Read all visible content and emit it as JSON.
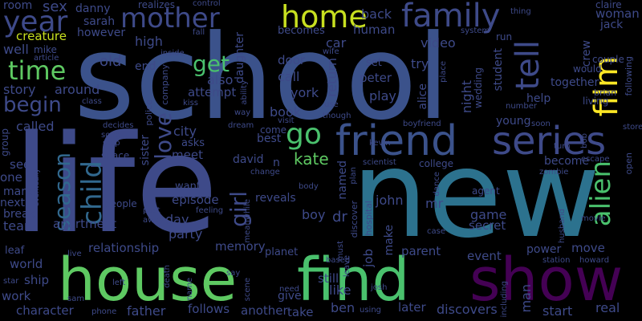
{
  "words": [
    {
      "text": "school",
      "color": "#3b528b",
      "vertical": false
    },
    {
      "text": "life",
      "color": "#3e4a89",
      "vertical": false
    },
    {
      "text": "new",
      "color": "#2c728e",
      "vertical": false
    },
    {
      "text": "house",
      "color": "#5ec962",
      "vertical": false
    },
    {
      "text": "find",
      "color": "#4ac16d",
      "vertical": false
    },
    {
      "text": "show",
      "color": "#440154",
      "vertical": false
    },
    {
      "text": "friend",
      "color": "#3b528b",
      "vertical": false
    },
    {
      "text": "series",
      "color": "#3e4a89",
      "vertical": false
    },
    {
      "text": "family",
      "color": "#3e4a89",
      "vertical": false
    },
    {
      "text": "mother",
      "color": "#3e4a89",
      "vertical": false
    },
    {
      "text": "home",
      "color": "#c8e020",
      "vertical": false
    },
    {
      "text": "year",
      "color": "#3e4a89",
      "vertical": false
    },
    {
      "text": "time",
      "color": "#5ec962",
      "vertical": false
    },
    {
      "text": "film",
      "color": "#fde725",
      "vertical": true
    },
    {
      "text": "alien",
      "color": "#4ac16d",
      "vertical": true
    },
    {
      "text": "tell",
      "color": "#3e4a89",
      "vertical": true
    },
    {
      "text": "child",
      "color": "#31688e",
      "vertical": true
    },
    {
      "text": "season",
      "color": "#31688e",
      "vertical": true
    },
    {
      "text": "love",
      "color": "#3e4a89",
      "vertical": true
    },
    {
      "text": "girl",
      "color": "#3e4a89",
      "vertical": true
    },
    {
      "text": "go",
      "color": "#4ac16d",
      "vertical": false
    },
    {
      "text": "get",
      "color": "#4ac16d",
      "vertical": false
    },
    {
      "text": "begin",
      "color": "#3e4a89",
      "vertical": false
    },
    {
      "text": "kate",
      "color": "#5ec962",
      "vertical": false
    },
    {
      "text": "sex",
      "color": "#3e4a89",
      "vertical": false
    },
    {
      "text": "room",
      "color": "#3e4a89",
      "vertical": false
    },
    {
      "text": "danny",
      "color": "#3e4a89",
      "vertical": false
    },
    {
      "text": "realizes",
      "color": "#3e4a89",
      "vertical": false
    },
    {
      "text": "control",
      "color": "#3e4a89",
      "vertical": false
    },
    {
      "text": "claire",
      "color": "#3e4a89",
      "vertical": false
    },
    {
      "text": "woman",
      "color": "#3e4a89",
      "vertical": false
    },
    {
      "text": "jack",
      "color": "#3e4a89",
      "vertical": false
    },
    {
      "text": "back",
      "color": "#3e4a89",
      "vertical": false
    },
    {
      "text": "video",
      "color": "#3e4a89",
      "vertical": false
    },
    {
      "text": "system",
      "color": "#3e4a89",
      "vertical": false
    },
    {
      "text": "crew",
      "color": "#3e4a89",
      "vertical": true
    },
    {
      "text": "thing",
      "color": "#3e4a89",
      "vertical": false
    },
    {
      "text": "run",
      "color": "#3e4a89",
      "vertical": false
    },
    {
      "text": "couple",
      "color": "#3e4a89",
      "vertical": false
    },
    {
      "text": "would",
      "color": "#3e4a89",
      "vertical": false
    },
    {
      "text": "brian",
      "color": "#3e4a89",
      "vertical": false
    },
    {
      "text": "living",
      "color": "#3e4a89",
      "vertical": false
    },
    {
      "text": "following",
      "color": "#3e4a89",
      "vertical": true
    },
    {
      "text": "sarah",
      "color": "#3e4a89",
      "vertical": false
    },
    {
      "text": "however",
      "color": "#3e4a89",
      "vertical": false
    },
    {
      "text": "creature",
      "color": "#c8e020",
      "vertical": false
    },
    {
      "text": "well",
      "color": "#3e4a89",
      "vertical": false
    },
    {
      "text": "mike",
      "color": "#3e4a89",
      "vertical": false
    },
    {
      "text": "article",
      "color": "#3e4a89",
      "vertical": false
    },
    {
      "text": "old",
      "color": "#3e4a89",
      "vertical": false
    },
    {
      "text": "high",
      "color": "#3e4a89",
      "vertical": false
    },
    {
      "text": "end",
      "color": "#3e4a89",
      "vertical": false
    },
    {
      "text": "inside",
      "color": "#3e4a89",
      "vertical": false
    },
    {
      "text": "fall",
      "color": "#3e4a89",
      "vertical": false
    },
    {
      "text": "daughter",
      "color": "#3e4a89",
      "vertical": true
    },
    {
      "text": "becomes",
      "color": "#3e4a89",
      "vertical": false
    },
    {
      "text": "car",
      "color": "#3e4a89",
      "vertical": false
    },
    {
      "text": "wife",
      "color": "#3e4a89",
      "vertical": false
    },
    {
      "text": "human",
      "color": "#3e4a89",
      "vertical": false
    },
    {
      "text": "try",
      "color": "#3e4a89",
      "vertical": false
    },
    {
      "text": "door",
      "color": "#3e4a89",
      "vertical": false
    },
    {
      "text": "set",
      "color": "#3e4a89",
      "vertical": false
    },
    {
      "text": "return",
      "color": "#3e4a89",
      "vertical": true
    },
    {
      "text": "peter",
      "color": "#3e4a89",
      "vertical": false
    },
    {
      "text": "call",
      "color": "#3e4a89",
      "vertical": false
    },
    {
      "text": "play",
      "color": "#3e4a89",
      "vertical": false
    },
    {
      "text": "though",
      "color": "#3e4a89",
      "vertical": false
    },
    {
      "text": "alice",
      "color": "#3e4a89",
      "vertical": true
    },
    {
      "text": "night",
      "color": "#3e4a89",
      "vertical": true
    },
    {
      "text": "wedding",
      "color": "#3e4a89",
      "vertical": true
    },
    {
      "text": "student",
      "color": "#3e4a89",
      "vertical": true
    },
    {
      "text": "together",
      "color": "#3e4a89",
      "vertical": false
    },
    {
      "text": "help",
      "color": "#3e4a89",
      "vertical": false
    },
    {
      "text": "class",
      "color": "#3e4a89",
      "vertical": false
    },
    {
      "text": "number",
      "color": "#3e4a89",
      "vertical": false
    },
    {
      "text": "story",
      "color": "#3e4a89",
      "vertical": false
    },
    {
      "text": "around",
      "color": "#3e4a89",
      "vertical": false
    },
    {
      "text": "also",
      "color": "#3e4a89",
      "vertical": false
    },
    {
      "text": "attempt",
      "color": "#3e4a89",
      "vertical": false
    },
    {
      "text": "york",
      "color": "#3e4a89",
      "vertical": false
    },
    {
      "text": "way",
      "color": "#3e4a89",
      "vertical": false
    },
    {
      "text": "kiss",
      "color": "#3e4a89",
      "vertical": false
    },
    {
      "text": "company",
      "color": "#3e4a89",
      "vertical": true
    },
    {
      "text": "ability",
      "color": "#3e4a89",
      "vertical": true
    },
    {
      "text": "use",
      "color": "#3e4a89",
      "vertical": false
    },
    {
      "text": "place",
      "color": "#3e4a89",
      "vertical": true
    },
    {
      "text": "book",
      "color": "#3e4a89",
      "vertical": false
    },
    {
      "text": "visit",
      "color": "#3e4a89",
      "vertical": false
    },
    {
      "text": "dream",
      "color": "#3e4a89",
      "vertical": false
    },
    {
      "text": "come",
      "color": "#3e4a89",
      "vertical": false
    },
    {
      "text": "boyfriend",
      "color": "#3e4a89",
      "vertical": false
    },
    {
      "text": "young",
      "color": "#3e4a89",
      "vertical": false
    },
    {
      "text": "soon",
      "color": "#3e4a89",
      "vertical": false
    },
    {
      "text": "called",
      "color": "#3e4a89",
      "vertical": false
    },
    {
      "text": "group",
      "color": "#3e4a89",
      "vertical": true
    },
    {
      "text": "decides",
      "color": "#3e4a89",
      "vertical": false
    },
    {
      "text": "song",
      "color": "#3e4a89",
      "vertical": false
    },
    {
      "text": "stop",
      "color": "#3e4a89",
      "vertical": false
    },
    {
      "text": "police",
      "color": "#3e4a89",
      "vertical": true
    },
    {
      "text": "city",
      "color": "#3e4a89",
      "vertical": false
    },
    {
      "text": "asks",
      "color": "#3e4a89",
      "vertical": false
    },
    {
      "text": "best",
      "color": "#3e4a89",
      "vertical": false
    },
    {
      "text": "kevin",
      "color": "#3e4a89",
      "vertical": false
    },
    {
      "text": "turn",
      "color": "#3e4a89",
      "vertical": false
    },
    {
      "text": "store",
      "color": "#3e4a89",
      "vertical": false
    },
    {
      "text": "bob",
      "color": "#3e4a89",
      "vertical": true
    },
    {
      "text": "space",
      "color": "#3e4a89",
      "vertical": false
    },
    {
      "text": "sister",
      "color": "#3e4a89",
      "vertical": true
    },
    {
      "text": "meet",
      "color": "#3e4a89",
      "vertical": false
    },
    {
      "text": "david",
      "color": "#3e4a89",
      "vertical": false
    },
    {
      "text": "college",
      "color": "#3e4a89",
      "vertical": false
    },
    {
      "text": "scientist",
      "color": "#3e4a89",
      "vertical": false
    },
    {
      "text": "become",
      "color": "#3e4a89",
      "vertical": false
    },
    {
      "text": "escape",
      "color": "#3e4a89",
      "vertical": false
    },
    {
      "text": "zombie",
      "color": "#3e4a89",
      "vertical": false
    },
    {
      "text": "open",
      "color": "#3e4a89",
      "vertical": true
    },
    {
      "text": "see",
      "color": "#3e4a89",
      "vertical": false
    },
    {
      "text": "one",
      "color": "#3e4a89",
      "vertical": false
    },
    {
      "text": "eventually",
      "color": "#3e4a89",
      "vertical": true
    },
    {
      "text": "n",
      "color": "#3e4a89",
      "vertical": false
    },
    {
      "text": "change",
      "color": "#3e4a89",
      "vertical": false
    },
    {
      "text": "named",
      "color": "#3e4a89",
      "vertical": true
    },
    {
      "text": "plan",
      "color": "#3e4a89",
      "vertical": true
    },
    {
      "text": "mark",
      "color": "#3e4a89",
      "vertical": false
    },
    {
      "text": "want",
      "color": "#3e4a89",
      "vertical": false
    },
    {
      "text": "body",
      "color": "#3e4a89",
      "vertical": false
    },
    {
      "text": "dance",
      "color": "#3e4a89",
      "vertical": true
    },
    {
      "text": "agent",
      "color": "#3e4a89",
      "vertical": false
    },
    {
      "text": "next",
      "color": "#3e4a89",
      "vertical": false
    },
    {
      "text": "episode",
      "color": "#3e4a89",
      "vertical": false
    },
    {
      "text": "reveals",
      "color": "#3e4a89",
      "vertical": false
    },
    {
      "text": "john",
      "color": "#3e4a89",
      "vertical": false
    },
    {
      "text": "discover",
      "color": "#3e4a89",
      "vertical": true
    },
    {
      "text": "hospital",
      "color": "#3e4a89",
      "vertical": true
    },
    {
      "text": "break",
      "color": "#3e4a89",
      "vertical": false
    },
    {
      "text": "people",
      "color": "#3e4a89",
      "vertical": false
    },
    {
      "text": "past",
      "color": "#3e4a89",
      "vertical": false
    },
    {
      "text": "feeling",
      "color": "#3e4a89",
      "vertical": false
    },
    {
      "text": "meanwhile",
      "color": "#3e4a89",
      "vertical": true
    },
    {
      "text": "boy",
      "color": "#3e4a89",
      "vertical": false
    },
    {
      "text": "dr",
      "color": "#3e4a89",
      "vertical": false
    },
    {
      "text": "mr",
      "color": "#3e4a89",
      "vertical": false
    },
    {
      "text": "game",
      "color": "#3e4a89",
      "vertical": false
    },
    {
      "text": "movie",
      "color": "#3e4a89",
      "vertical": false
    },
    {
      "text": "team",
      "color": "#3e4a89",
      "vertical": false
    },
    {
      "text": "apartment",
      "color": "#3e4a89",
      "vertical": false
    },
    {
      "text": "away",
      "color": "#3e4a89",
      "vertical": false
    },
    {
      "text": "day",
      "color": "#3e4a89",
      "vertical": false
    },
    {
      "text": "secret",
      "color": "#3e4a89",
      "vertical": false
    },
    {
      "text": "make",
      "color": "#3e4a89",
      "vertical": true
    },
    {
      "text": "case",
      "color": "#3e4a89",
      "vertical": false
    },
    {
      "text": "husband",
      "color": "#3e4a89",
      "vertical": true
    },
    {
      "text": "party",
      "color": "#3e4a89",
      "vertical": false
    },
    {
      "text": "memory",
      "color": "#3e4a89",
      "vertical": false
    },
    {
      "text": "leaf",
      "color": "#3e4a89",
      "vertical": false
    },
    {
      "text": "relationship",
      "color": "#3e4a89",
      "vertical": false
    },
    {
      "text": "planet",
      "color": "#3e4a89",
      "vertical": false
    },
    {
      "text": "parent",
      "color": "#3e4a89",
      "vertical": false
    },
    {
      "text": "job",
      "color": "#3e4a89",
      "vertical": true
    },
    {
      "text": "event",
      "color": "#3e4a89",
      "vertical": false
    },
    {
      "text": "power",
      "color": "#3e4a89",
      "vertical": false
    },
    {
      "text": "move",
      "color": "#3e4a89",
      "vertical": false
    },
    {
      "text": "world",
      "color": "#3e4a89",
      "vertical": false
    },
    {
      "text": "live",
      "color": "#3e4a89",
      "vertical": false
    },
    {
      "text": "based",
      "color": "#3e4a89",
      "vertical": false
    },
    {
      "text": "leave",
      "color": "#3e4a89",
      "vertical": true
    },
    {
      "text": "station",
      "color": "#3e4a89",
      "vertical": false
    },
    {
      "text": "howard",
      "color": "#3e4a89",
      "vertical": false
    },
    {
      "text": "star",
      "color": "#3e4a89",
      "vertical": false
    },
    {
      "text": "ship",
      "color": "#3e4a89",
      "vertical": false
    },
    {
      "text": "left",
      "color": "#3e4a89",
      "vertical": false
    },
    {
      "text": "death",
      "color": "#3e4a89",
      "vertical": true
    },
    {
      "text": "name",
      "color": "#3e4a89",
      "vertical": true
    },
    {
      "text": "say",
      "color": "#3e4a89",
      "vertical": false
    },
    {
      "text": "scene",
      "color": "#3e4a89",
      "vertical": true
    },
    {
      "text": "still",
      "color": "#3e4a89",
      "vertical": false
    },
    {
      "text": "must",
      "color": "#3e4a89",
      "vertical": true
    },
    {
      "text": "like",
      "color": "#3e4a89",
      "vertical": false
    },
    {
      "text": "josh",
      "color": "#3e4a89",
      "vertical": false
    },
    {
      "text": "man",
      "color": "#3e4a89",
      "vertical": true
    },
    {
      "text": "including",
      "color": "#3e4a89",
      "vertical": true
    },
    {
      "text": "work",
      "color": "#3e4a89",
      "vertical": false
    },
    {
      "text": "sam",
      "color": "#3e4a89",
      "vertical": false
    },
    {
      "text": "need",
      "color": "#3e4a89",
      "vertical": false
    },
    {
      "text": "give",
      "color": "#3e4a89",
      "vertical": false
    },
    {
      "text": "character",
      "color": "#3e4a89",
      "vertical": false
    },
    {
      "text": "phone",
      "color": "#3e4a89",
      "vertical": false
    },
    {
      "text": "father",
      "color": "#3e4a89",
      "vertical": false
    },
    {
      "text": "follows",
      "color": "#3e4a89",
      "vertical": false
    },
    {
      "text": "another",
      "color": "#3e4a89",
      "vertical": false
    },
    {
      "text": "take",
      "color": "#3e4a89",
      "vertical": false
    },
    {
      "text": "ben",
      "color": "#3e4a89",
      "vertical": false
    },
    {
      "text": "using",
      "color": "#3e4a89",
      "vertical": false
    },
    {
      "text": "later",
      "color": "#3e4a89",
      "vertical": false
    },
    {
      "text": "discovers",
      "color": "#3e4a89",
      "vertical": false
    },
    {
      "text": "start",
      "color": "#3e4a89",
      "vertical": false
    },
    {
      "text": "real",
      "color": "#3e4a89",
      "vertical": false
    }
  ]
}
